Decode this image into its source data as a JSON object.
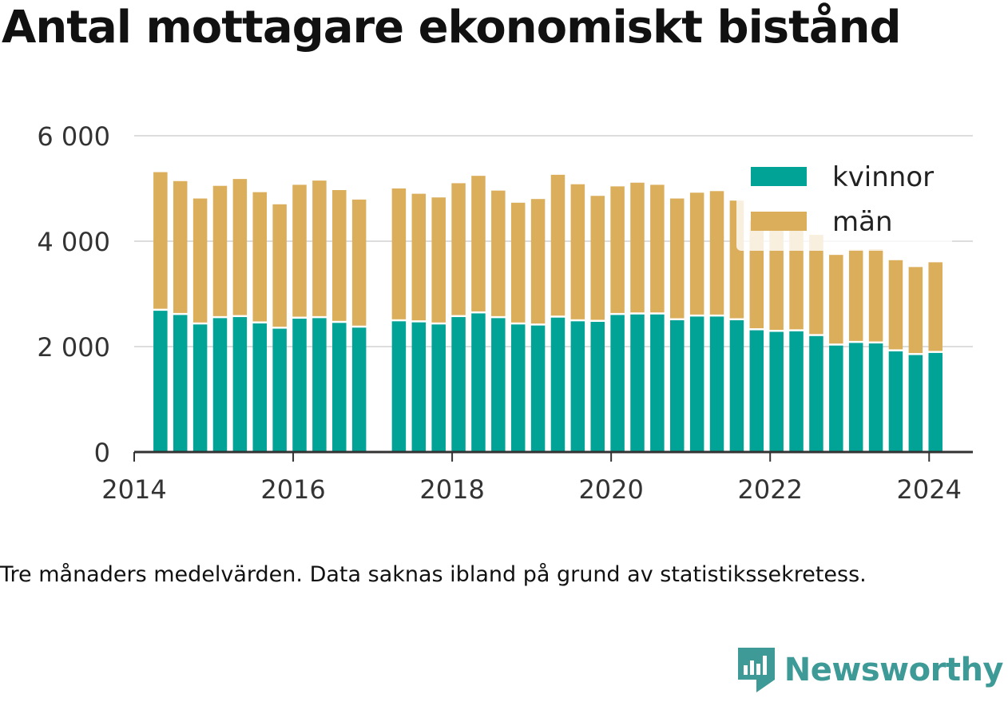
{
  "title": "Antal mottagare ekonomiskt bistånd",
  "note": "Tre månaders medelvärden. Data saknas ibland på grund av statistikssekretess.",
  "brand": "Newsworthy",
  "colors": {
    "kvinnor": "#00a396",
    "man": "#dbae5c",
    "grid": "#dddddd",
    "axis": "#333333"
  },
  "chart_data": {
    "type": "bar",
    "stacked": true,
    "legend_position": "top-right",
    "grid": true,
    "ylim": [
      0,
      6000
    ],
    "yticks": [
      0,
      2000,
      4000,
      6000
    ],
    "ytick_labels": [
      "0",
      "2 000",
      "4 000",
      "6 000"
    ],
    "xlim": [
      2014.0,
      2024.55
    ],
    "xticks": [
      2014,
      2016,
      2018,
      2020,
      2022,
      2024
    ],
    "xtick_labels": [
      "2014",
      "2016",
      "2018",
      "2020",
      "2022",
      "2024"
    ],
    "x": [
      2014.33,
      2014.58,
      2014.83,
      2015.08,
      2015.33,
      2015.58,
      2015.83,
      2016.08,
      2016.33,
      2016.58,
      2016.83,
      2017.33,
      2017.58,
      2017.83,
      2018.08,
      2018.33,
      2018.58,
      2018.83,
      2019.08,
      2019.33,
      2019.58,
      2019.83,
      2020.08,
      2020.33,
      2020.58,
      2020.83,
      2021.08,
      2021.33,
      2021.58,
      2021.83,
      2022.08,
      2022.33,
      2022.58,
      2022.83,
      2023.08,
      2023.33,
      2023.58,
      2023.83,
      2024.08
    ],
    "series": [
      {
        "name": "kvinnor",
        "values": [
          2680,
          2600,
          2420,
          2540,
          2560,
          2440,
          2340,
          2530,
          2540,
          2450,
          2360,
          2480,
          2460,
          2420,
          2560,
          2630,
          2540,
          2420,
          2400,
          2550,
          2480,
          2470,
          2600,
          2610,
          2610,
          2500,
          2570,
          2570,
          2500,
          2310,
          2280,
          2290,
          2200,
          2020,
          2070,
          2060,
          1910,
          1840,
          1880
        ]
      },
      {
        "name": "män",
        "values": [
          2630,
          2540,
          2390,
          2510,
          2620,
          2490,
          2360,
          2540,
          2610,
          2520,
          2430,
          2520,
          2440,
          2410,
          2540,
          2610,
          2420,
          2310,
          2400,
          2710,
          2600,
          2390,
          2440,
          2500,
          2460,
          2310,
          2350,
          2380,
          2270,
          2080,
          2080,
          2070,
          1920,
          1720,
          1770,
          1790,
          1730,
          1670,
          1720
        ]
      }
    ]
  }
}
